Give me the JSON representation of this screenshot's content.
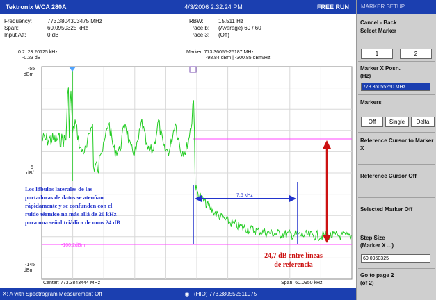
{
  "title_bar": {
    "brand": "Tektronix WCA 280A",
    "datetime": "4/3/2006 2:32:24 PM",
    "run_state": "FREE RUN"
  },
  "params": {
    "frequency_label": "Frequency:",
    "frequency_value": "773.3804303475 MHz",
    "span_label": "Span:",
    "span_value": "60.0950325 kHz",
    "input_att_label": "Input Att:",
    "input_att_value": "0 dB",
    "rbw_label": "RBW:",
    "rbw_value": "15.511 Hz",
    "traceb_label": "Trace b:",
    "traceb_value": "(Average) 60 / 60",
    "tracec_label": "Trace 3:",
    "tracec_value": "(Off)"
  },
  "plot": {
    "ref_marker_top": "0.2: 23 20125 kHz",
    "ref_marker_db": "-0.23 dB",
    "marker_readout_1": "Marker: 773.36055-25187 MHz",
    "marker_readout_2": "-98.84 dBm | -300.85 dBm/Hz",
    "y_top_label": "-55",
    "y_top_unit": "dBm",
    "y_div_label": "5",
    "y_div_unit": "dB/",
    "y_bottom_label": "-145",
    "y_bottom_unit": "dBm",
    "center_label": "Center: 773.3843444 MHz",
    "span_footer": "Span: 60.0950 kHz",
    "delta_label": "7.5 kHz",
    "ref_line_label": "-100.2dBm",
    "annotation_blue": [
      "Los lóbulos laterales de las",
      "portadoras de datos se atenúan",
      "rápidamente y se confunden con el",
      "ruido térmico no más allá de 20 kHz",
      "para una señal triádica de unos 24 dB"
    ],
    "annotation_red": [
      "24,7 dB entre líneas",
      "de referencia"
    ]
  },
  "sidebar": {
    "header": "MARKER SETUP",
    "cancel_back": "Cancel - Back",
    "select_marker": "Select Marker",
    "marker_opts": [
      "1",
      "2"
    ],
    "marker_x_label": "Marker X Posn.",
    "marker_x_unit": "(Hz)",
    "marker_x_value": "773.36055250 MHz",
    "markers": "Markers",
    "marker_modes": [
      "Off",
      "Single",
      "Delta"
    ],
    "ref_cursor_marker": "Reference Cursor to Marker X",
    "ref_cursor_off": "Reference Cursor Off",
    "selected_marker_off": "Selected Marker Off",
    "step_size": "Step Size",
    "step_size_sub": "(Marker X ...)",
    "step_value": "60.0950325",
    "go_to_page": "Go to page 2",
    "go_to_page_sub": "(of 2)"
  },
  "status_bar": {
    "left": "X: A with Spectrogram Measurement Off",
    "right": "(HIO)  773.380552511075"
  },
  "colors": {
    "trace": "#22cc22",
    "marker_lines": "#2233cc",
    "ref_lines": "#ff44ff",
    "arrow_red": "#cc1111",
    "annotation_blue": "#2233cc",
    "annotation_red": "#cc1111",
    "title_bg": "#1b3fb0"
  }
}
